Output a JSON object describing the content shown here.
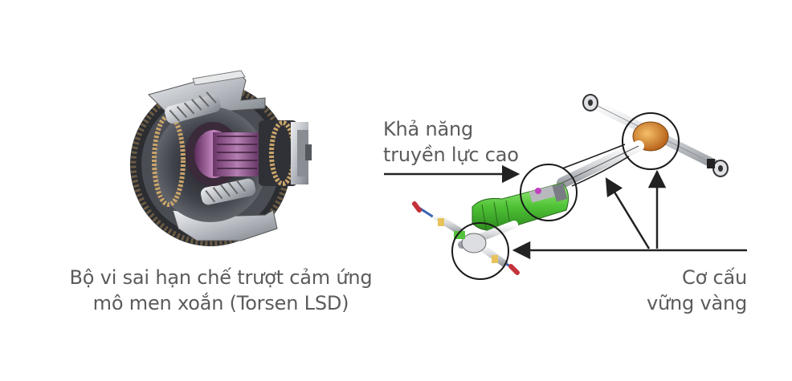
{
  "captions": {
    "left_line1": "Bộ vi sai hạn chế trượt cảm ứng",
    "left_line2": "mô men xoắn (Torsen LSD)",
    "top_line1": "Khả năng",
    "top_line2": "truyền lực cao",
    "right_line1": "Cơ cấu",
    "right_line2": "vững vàng"
  },
  "colors": {
    "caption_text": "#5b5b5b",
    "gear_ring": "#3a3d42",
    "metal_light": "#c9ccd0",
    "magenta_accent": "#8b4a86",
    "drivetrain_green": "#53c23c",
    "diff_orange": "#d98a2c",
    "axle_blue": "#3b63b5",
    "axle_red": "#c4323c"
  }
}
